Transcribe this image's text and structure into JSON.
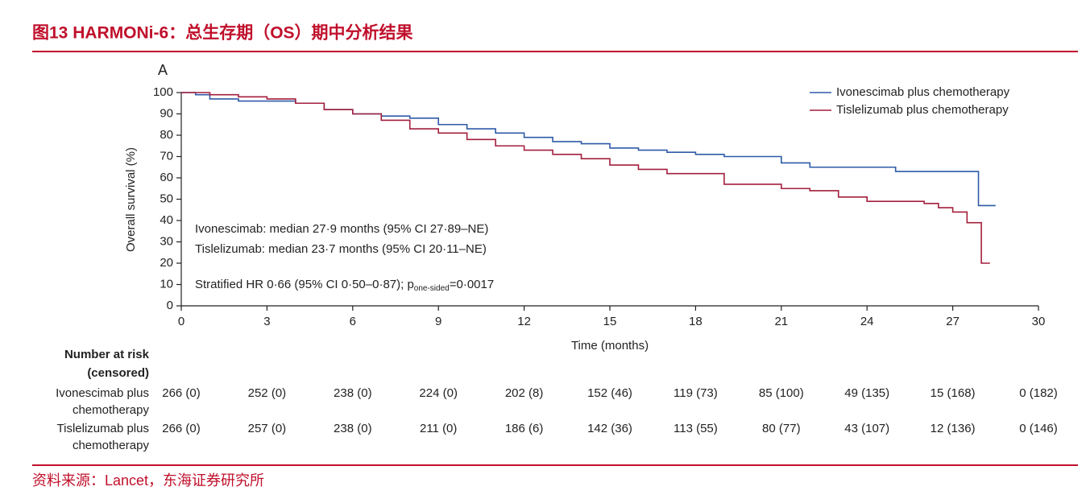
{
  "header": {
    "title": "图13 HARMONi-6：总生存期（OS）期中分析结果"
  },
  "chart_data": {
    "type": "line",
    "step": true,
    "panel_label": "A",
    "xlabel": "Time (months)",
    "ylabel": "Overall survival (%)",
    "xlim": [
      0,
      30
    ],
    "xticks": [
      0,
      3,
      6,
      9,
      12,
      15,
      18,
      21,
      24,
      27,
      30
    ],
    "ylim": [
      0,
      100
    ],
    "yticks": [
      0,
      10,
      20,
      30,
      40,
      50,
      60,
      70,
      80,
      90,
      100
    ],
    "legend": "top-right",
    "series": [
      {
        "name": "Ivonescimab plus chemotherapy",
        "color": "#2e5aa8",
        "x": [
          0,
          0.5,
          1,
          2,
          3,
          4,
          5,
          6,
          7,
          8,
          9,
          10,
          11,
          12,
          13,
          14,
          15,
          16,
          17,
          18,
          19,
          20,
          21,
          22,
          23,
          24,
          25,
          26,
          27,
          27.9,
          28.5
        ],
        "values": [
          100,
          99,
          97,
          96,
          96,
          95,
          92,
          90,
          89,
          88,
          85,
          83,
          81,
          79,
          77,
          76,
          74,
          73,
          72,
          71,
          70,
          70,
          67,
          65,
          65,
          65,
          63,
          63,
          63,
          47,
          47
        ]
      },
      {
        "name": "Tislelizumab plus chemotherapy",
        "color": "#a31f3d",
        "x": [
          0,
          1,
          2,
          3,
          4,
          5,
          6,
          7,
          8,
          9,
          10,
          11,
          12,
          13,
          14,
          15,
          16,
          17,
          18,
          19,
          20,
          21,
          22,
          23,
          24,
          25,
          26,
          26.5,
          27,
          27.5,
          28,
          28.3
        ],
        "values": [
          100,
          99,
          98,
          97,
          95,
          92,
          90,
          87,
          83,
          81,
          78,
          75,
          73,
          71,
          69,
          66,
          64,
          62,
          62,
          57,
          57,
          55,
          54,
          51,
          49,
          49,
          48,
          46,
          44,
          39,
          20,
          20
        ]
      }
    ],
    "annotations": [
      "Ivonescimab: median 27·9 months (95% CI 27·89–NE)",
      "Tislelizumab: median 23·7 months (95% CI 20·11–NE)"
    ],
    "hr_text": {
      "main": "Stratified HR 0·66 (95% CI 0·50–0·87); p",
      "sub": "one-sided",
      "tail": "=0·0017"
    }
  },
  "risk_table": {
    "title": [
      "Number at risk",
      "(censored)"
    ],
    "rows": [
      {
        "label": [
          "Ivonescimab plus",
          "chemotherapy"
        ],
        "values": [
          "266 (0)",
          "252 (0)",
          "238 (0)",
          "224 (0)",
          "202 (8)",
          "152 (46)",
          "119 (73)",
          "85 (100)",
          "49 (135)",
          "15 (168)",
          "0 (182)"
        ]
      },
      {
        "label": [
          "Tislelizumab plus",
          "chemotherapy"
        ],
        "values": [
          "266 (0)",
          "257 (0)",
          "238 (0)",
          "211 (0)",
          "186 (6)",
          "142 (36)",
          "113 (55)",
          "80 (77)",
          "43 (107)",
          "12 (136)",
          "0 (146)"
        ]
      }
    ]
  },
  "footer": {
    "source": "资料来源：Lancet，东海证券研究所"
  }
}
